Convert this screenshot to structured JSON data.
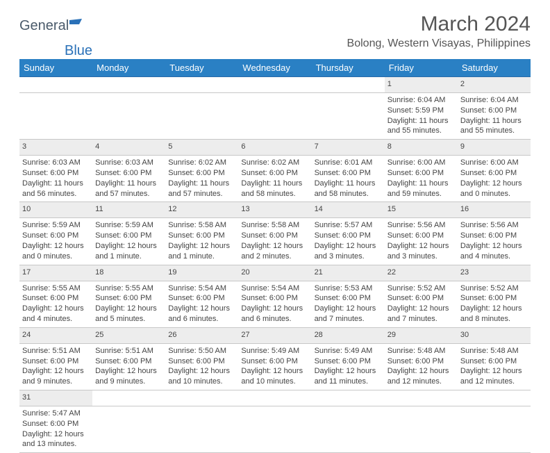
{
  "logo": {
    "general": "General",
    "blue": "Blue"
  },
  "title": "March 2024",
  "location": "Bolong, Western Visayas, Philippines",
  "colors": {
    "header_bg": "#2a80c4",
    "header_text": "#ffffff",
    "row_sep": "#2a6aa8",
    "daynum_bg": "#ededed",
    "text": "#444444",
    "logo_gray": "#4a5a6a",
    "logo_blue": "#2a71b8"
  },
  "days_of_week": [
    "Sunday",
    "Monday",
    "Tuesday",
    "Wednesday",
    "Thursday",
    "Friday",
    "Saturday"
  ],
  "weeks": [
    {
      "nums": [
        "",
        "",
        "",
        "",
        "",
        "1",
        "2"
      ],
      "cells": [
        "",
        "",
        "",
        "",
        "",
        "Sunrise: 6:04 AM\nSunset: 5:59 PM\nDaylight: 11 hours and 55 minutes.",
        "Sunrise: 6:04 AM\nSunset: 6:00 PM\nDaylight: 11 hours and 55 minutes."
      ]
    },
    {
      "nums": [
        "3",
        "4",
        "5",
        "6",
        "7",
        "8",
        "9"
      ],
      "cells": [
        "Sunrise: 6:03 AM\nSunset: 6:00 PM\nDaylight: 11 hours and 56 minutes.",
        "Sunrise: 6:03 AM\nSunset: 6:00 PM\nDaylight: 11 hours and 57 minutes.",
        "Sunrise: 6:02 AM\nSunset: 6:00 PM\nDaylight: 11 hours and 57 minutes.",
        "Sunrise: 6:02 AM\nSunset: 6:00 PM\nDaylight: 11 hours and 58 minutes.",
        "Sunrise: 6:01 AM\nSunset: 6:00 PM\nDaylight: 11 hours and 58 minutes.",
        "Sunrise: 6:00 AM\nSunset: 6:00 PM\nDaylight: 11 hours and 59 minutes.",
        "Sunrise: 6:00 AM\nSunset: 6:00 PM\nDaylight: 12 hours and 0 minutes."
      ]
    },
    {
      "nums": [
        "10",
        "11",
        "12",
        "13",
        "14",
        "15",
        "16"
      ],
      "cells": [
        "Sunrise: 5:59 AM\nSunset: 6:00 PM\nDaylight: 12 hours and 0 minutes.",
        "Sunrise: 5:59 AM\nSunset: 6:00 PM\nDaylight: 12 hours and 1 minute.",
        "Sunrise: 5:58 AM\nSunset: 6:00 PM\nDaylight: 12 hours and 1 minute.",
        "Sunrise: 5:58 AM\nSunset: 6:00 PM\nDaylight: 12 hours and 2 minutes.",
        "Sunrise: 5:57 AM\nSunset: 6:00 PM\nDaylight: 12 hours and 3 minutes.",
        "Sunrise: 5:56 AM\nSunset: 6:00 PM\nDaylight: 12 hours and 3 minutes.",
        "Sunrise: 5:56 AM\nSunset: 6:00 PM\nDaylight: 12 hours and 4 minutes."
      ]
    },
    {
      "nums": [
        "17",
        "18",
        "19",
        "20",
        "21",
        "22",
        "23"
      ],
      "cells": [
        "Sunrise: 5:55 AM\nSunset: 6:00 PM\nDaylight: 12 hours and 4 minutes.",
        "Sunrise: 5:55 AM\nSunset: 6:00 PM\nDaylight: 12 hours and 5 minutes.",
        "Sunrise: 5:54 AM\nSunset: 6:00 PM\nDaylight: 12 hours and 6 minutes.",
        "Sunrise: 5:54 AM\nSunset: 6:00 PM\nDaylight: 12 hours and 6 minutes.",
        "Sunrise: 5:53 AM\nSunset: 6:00 PM\nDaylight: 12 hours and 7 minutes.",
        "Sunrise: 5:52 AM\nSunset: 6:00 PM\nDaylight: 12 hours and 7 minutes.",
        "Sunrise: 5:52 AM\nSunset: 6:00 PM\nDaylight: 12 hours and 8 minutes."
      ]
    },
    {
      "nums": [
        "24",
        "25",
        "26",
        "27",
        "28",
        "29",
        "30"
      ],
      "cells": [
        "Sunrise: 5:51 AM\nSunset: 6:00 PM\nDaylight: 12 hours and 9 minutes.",
        "Sunrise: 5:51 AM\nSunset: 6:00 PM\nDaylight: 12 hours and 9 minutes.",
        "Sunrise: 5:50 AM\nSunset: 6:00 PM\nDaylight: 12 hours and 10 minutes.",
        "Sunrise: 5:49 AM\nSunset: 6:00 PM\nDaylight: 12 hours and 10 minutes.",
        "Sunrise: 5:49 AM\nSunset: 6:00 PM\nDaylight: 12 hours and 11 minutes.",
        "Sunrise: 5:48 AM\nSunset: 6:00 PM\nDaylight: 12 hours and 12 minutes.",
        "Sunrise: 5:48 AM\nSunset: 6:00 PM\nDaylight: 12 hours and 12 minutes."
      ]
    },
    {
      "nums": [
        "31",
        "",
        "",
        "",
        "",
        "",
        ""
      ],
      "cells": [
        "Sunrise: 5:47 AM\nSunset: 6:00 PM\nDaylight: 12 hours and 13 minutes.",
        "",
        "",
        "",
        "",
        "",
        ""
      ]
    }
  ]
}
